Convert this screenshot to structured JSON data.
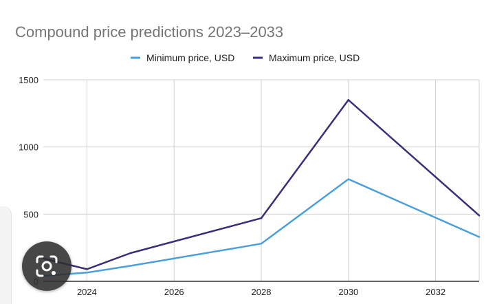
{
  "chart_data": {
    "type": "line",
    "title": "Compound price predictions 2023–2033",
    "xlabel": "",
    "ylabel": "",
    "x": [
      2023,
      2024,
      2025,
      2028,
      2030,
      2033
    ],
    "xlim": [
      2023,
      2033
    ],
    "ylim": [
      0,
      1500
    ],
    "x_ticks": [
      "2024",
      "2026",
      "2028",
      "2030",
      "2032"
    ],
    "y_ticks": [
      "0",
      "500",
      "1000",
      "1500"
    ],
    "grid": true,
    "legend_position": "top",
    "series": [
      {
        "name": "Minimum price, USD",
        "color": "#4a9fdb",
        "values": [
          40,
          65,
          115,
          280,
          760,
          330
        ]
      },
      {
        "name": "Maximum price, USD",
        "color": "#3a2d7a",
        "values": [
          170,
          90,
          210,
          470,
          1350,
          490
        ]
      }
    ]
  },
  "overlay": {
    "lens_icon": "camera-search-icon"
  }
}
